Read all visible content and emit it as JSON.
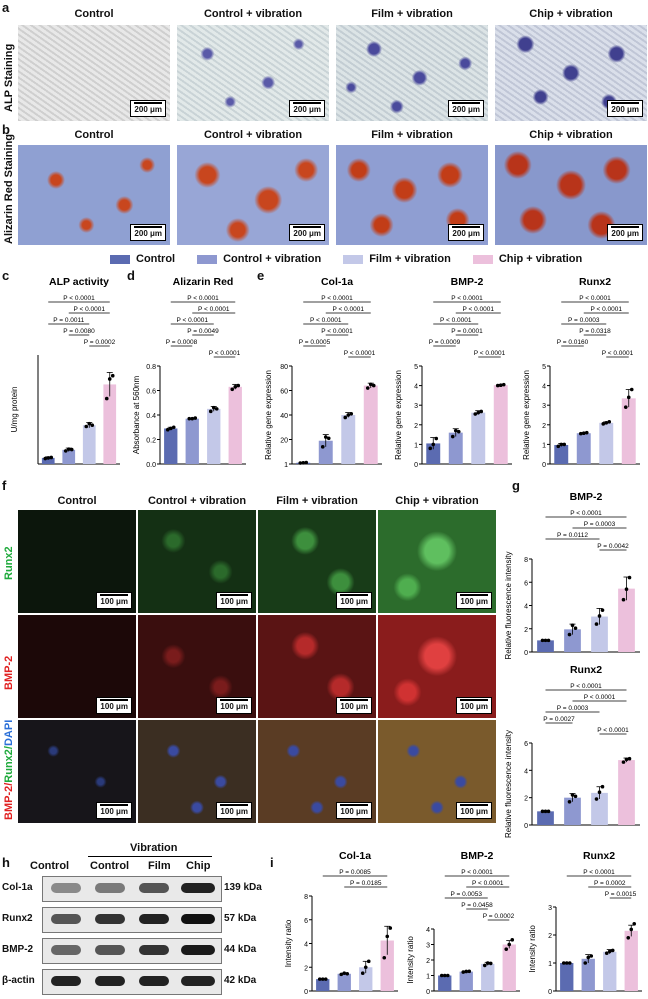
{
  "panel_letters": {
    "a": "a",
    "b": "b",
    "c": "c",
    "d": "d",
    "e": "e",
    "f": "f",
    "g": "g",
    "h": "h",
    "i": "i"
  },
  "groups": [
    "Control",
    "Control + vibration",
    "Film + vibration",
    "Chip + vibration"
  ],
  "colors": {
    "g1": "#5b6bb1",
    "g2": "#8e98d0",
    "g3": "#c3c8e8",
    "g4": "#ecc0dc"
  },
  "row_labels": {
    "alp": "ALP Staining",
    "alizarin": "Alizarin Red Staining",
    "runx2": "Runx2",
    "bmp2": "BMP-2",
    "merge_bmp": "BMP-2/",
    "merge_runx": "Runx2/",
    "merge_dapi": "DAPI"
  },
  "scale_bars": {
    "um200": "200 μm",
    "um100": "100 μm"
  },
  "western": {
    "header_control": "Control",
    "header_vibration": "Vibration",
    "lanes": [
      "Control",
      "Control",
      "Film",
      "Chip"
    ],
    "proteins": [
      "Col-1a",
      "Runx2",
      "BMP-2",
      "β-actin"
    ],
    "kda": [
      "139 kDa",
      "57 kDa",
      "44 kDa",
      "42 kDa"
    ]
  },
  "chart_data": [
    {
      "id": "c",
      "type": "bar",
      "title": "ALP activity",
      "ylabel": "U/mg protein",
      "ylim": [
        0,
        5
      ],
      "yticks": [],
      "categories": [
        "Control",
        "Control + vibration",
        "Film + vibration",
        "Chip + vibration"
      ],
      "values": [
        0.28,
        0.65,
        1.78,
        3.65
      ],
      "errors": [
        0.05,
        0.08,
        0.12,
        0.55
      ],
      "points": [
        [
          0.25,
          0.28,
          0.3
        ],
        [
          0.6,
          0.68,
          0.66
        ],
        [
          1.72,
          1.85,
          1.78
        ],
        [
          3.0,
          3.9,
          4.05
        ]
      ],
      "annotations": [
        {
          "text": "P < 0.0001",
          "a": 0,
          "b": 3
        },
        {
          "text": "P < 0.0001",
          "a": 1,
          "b": 3
        },
        {
          "text": "P = 0.0011",
          "a": 0,
          "b": 2
        },
        {
          "text": "P = 0.0080",
          "a": 1,
          "b": 2
        },
        {
          "text": "P = 0.0002",
          "a": 2,
          "b": 3
        }
      ]
    },
    {
      "id": "d",
      "type": "bar",
      "title": "Alizarin Red",
      "ylabel": "Absorbance at 560nm",
      "ylim": [
        0,
        0.8
      ],
      "yticks": [
        "0.0",
        "0.2",
        "0.4",
        "0.6",
        "0.8"
      ],
      "categories": [
        "Control",
        "Control + vibration",
        "Film + vibration",
        "Chip + vibration"
      ],
      "values": [
        0.29,
        0.37,
        0.45,
        0.63
      ],
      "errors": [
        0.01,
        0.005,
        0.02,
        0.02
      ],
      "points": [
        [
          0.28,
          0.29,
          0.3
        ],
        [
          0.37,
          0.37,
          0.375
        ],
        [
          0.43,
          0.46,
          0.45
        ],
        [
          0.61,
          0.63,
          0.64
        ]
      ],
      "annotations": [
        {
          "text": "P < 0.0001",
          "a": 0,
          "b": 3
        },
        {
          "text": "P < 0.0001",
          "a": 1,
          "b": 3
        },
        {
          "text": "P < 0.0001",
          "a": 0,
          "b": 2
        },
        {
          "text": "P = 0.0049",
          "a": 1,
          "b": 2
        },
        {
          "text": "P = 0.0008",
          "a": 0,
          "b": 1
        },
        {
          "text": "P < 0.0001",
          "a": 2,
          "b": 3
        }
      ]
    },
    {
      "id": "e1",
      "type": "bar",
      "title": "Col-1a",
      "ylabel": "Relative gene expression",
      "ylim": [
        0,
        80
      ],
      "yticks": [
        "1",
        "20",
        "40",
        "60",
        "80"
      ],
      "categories": [
        "Control",
        "Control + vibration",
        "Film + vibration",
        "Chip + vibration"
      ],
      "values": [
        1,
        19,
        40,
        64
      ],
      "errors": [
        0.3,
        5,
        2,
        2
      ],
      "points": [
        [
          0.8,
          1,
          1.2
        ],
        [
          14,
          22,
          21
        ],
        [
          38,
          40,
          41
        ],
        [
          62,
          65,
          64
        ]
      ],
      "annotations": [
        {
          "text": "P < 0.0001",
          "a": 0,
          "b": 3
        },
        {
          "text": "P < 0.0001",
          "a": 1,
          "b": 3
        },
        {
          "text": "P < 0.0001",
          "a": 0,
          "b": 2
        },
        {
          "text": "P < 0.0001",
          "a": 1,
          "b": 2
        },
        {
          "text": "P = 0.0005",
          "a": 0,
          "b": 1
        },
        {
          "text": "P < 0.0001",
          "a": 2,
          "b": 3
        }
      ]
    },
    {
      "id": "e2",
      "type": "bar",
      "title": "BMP-2",
      "ylabel": "Relative gene expression",
      "ylim": [
        0,
        5
      ],
      "yticks": [
        "0",
        "1",
        "2",
        "3",
        "4",
        "5"
      ],
      "categories": [
        "Control",
        "Control + vibration",
        "Film + vibration",
        "Chip + vibration"
      ],
      "values": [
        1.05,
        1.6,
        2.62,
        4.02
      ],
      "errors": [
        0.3,
        0.2,
        0.1,
        0.04
      ],
      "points": [
        [
          0.8,
          1.0,
          1.3
        ],
        [
          1.4,
          1.7,
          1.65
        ],
        [
          2.55,
          2.62,
          2.68
        ],
        [
          4.0,
          4.02,
          4.05
        ]
      ],
      "annotations": [
        {
          "text": "P < 0.0001",
          "a": 0,
          "b": 3
        },
        {
          "text": "P < 0.0001",
          "a": 1,
          "b": 3
        },
        {
          "text": "P < 0.0001",
          "a": 0,
          "b": 2
        },
        {
          "text": "P = 0.0001",
          "a": 1,
          "b": 2
        },
        {
          "text": "P = 0.0009",
          "a": 0,
          "b": 1
        },
        {
          "text": "P < 0.0001",
          "a": 2,
          "b": 3
        }
      ]
    },
    {
      "id": "e3",
      "type": "bar",
      "title": "Runx2",
      "ylabel": "Relative gene expression",
      "ylim": [
        0,
        5
      ],
      "yticks": [
        "0",
        "1",
        "2",
        "3",
        "4",
        "5"
      ],
      "categories": [
        "Control",
        "Control + vibration",
        "Film + vibration",
        "Chip + vibration"
      ],
      "values": [
        0.97,
        1.57,
        2.1,
        3.35
      ],
      "errors": [
        0.08,
        0.03,
        0.05,
        0.45
      ],
      "points": [
        [
          0.9,
          1.0,
          1.0
        ],
        [
          1.55,
          1.57,
          1.6
        ],
        [
          2.05,
          2.1,
          2.15
        ],
        [
          2.9,
          3.4,
          3.8
        ]
      ],
      "annotations": [
        {
          "text": "P < 0.0001",
          "a": 0,
          "b": 3
        },
        {
          "text": "P < 0.0001",
          "a": 1,
          "b": 3
        },
        {
          "text": "P = 0.0003",
          "a": 0,
          "b": 2
        },
        {
          "text": "P = 0.0318",
          "a": 1,
          "b": 2
        },
        {
          "text": "P = 0.0160",
          "a": 0,
          "b": 1
        },
        {
          "text": "P < 0.0001",
          "a": 2,
          "b": 3
        }
      ]
    },
    {
      "id": "g1",
      "type": "bar",
      "title": "BMP-2",
      "ylabel": "Relative fluorescence intensity",
      "ylim": [
        0,
        8
      ],
      "yticks": [
        "0",
        "2",
        "4",
        "6",
        "8"
      ],
      "categories": [
        "Control",
        "Control + vibration",
        "Film + vibration",
        "Chip + vibration"
      ],
      "values": [
        1.0,
        1.95,
        3.05,
        5.45
      ],
      "errors": [
        0.02,
        0.45,
        0.7,
        1.0
      ],
      "points": [
        [
          1.0,
          1.0,
          1.0
        ],
        [
          1.5,
          2.3,
          2.05
        ],
        [
          2.4,
          3.1,
          3.6
        ],
        [
          4.5,
          5.4,
          6.4
        ]
      ],
      "annotations": [
        {
          "text": "P < 0.0001",
          "a": 0,
          "b": 3
        },
        {
          "text": "P = 0.0003",
          "a": 1,
          "b": 3
        },
        {
          "text": "P = 0.0112",
          "a": 0,
          "b": 2
        },
        {
          "text": "P = 0.0042",
          "a": 2,
          "b": 3
        }
      ]
    },
    {
      "id": "g2",
      "type": "bar",
      "title": "Runx2",
      "ylabel": "Relative fluorescence intensity",
      "ylim": [
        0,
        6
      ],
      "yticks": [
        "0",
        "2",
        "4",
        "6"
      ],
      "categories": [
        "Control",
        "Control + vibration",
        "Film + vibration",
        "Chip + vibration"
      ],
      "values": [
        1.0,
        2.0,
        2.35,
        4.75
      ],
      "errors": [
        0.02,
        0.3,
        0.45,
        0.15
      ],
      "points": [
        [
          1.0,
          1.0,
          1.0
        ],
        [
          1.7,
          2.2,
          2.1
        ],
        [
          1.9,
          2.4,
          2.8
        ],
        [
          4.6,
          4.8,
          4.85
        ]
      ],
      "annotations": [
        {
          "text": "P < 0.0001",
          "a": 0,
          "b": 3
        },
        {
          "text": "P < 0.0001",
          "a": 1,
          "b": 3
        },
        {
          "text": "P = 0.0003",
          "a": 0,
          "b": 2
        },
        {
          "text": "P = 0.0027",
          "a": 0,
          "b": 1
        },
        {
          "text": "P < 0.0001",
          "a": 2,
          "b": 3
        }
      ]
    },
    {
      "id": "i1",
      "type": "bar",
      "title": "Col-1a",
      "ylabel": "Intensity ratio",
      "ylim": [
        0,
        8
      ],
      "yticks": [
        "0",
        "2",
        "4",
        "6",
        "8"
      ],
      "categories": [
        "Control",
        "Control + vibration",
        "Film + vibration",
        "Chip + vibration"
      ],
      "values": [
        1.0,
        1.45,
        2.0,
        4.25
      ],
      "errors": [
        0.02,
        0.05,
        0.5,
        1.2
      ],
      "points": [
        [
          1.0,
          1.0,
          1.0
        ],
        [
          1.4,
          1.5,
          1.45
        ],
        [
          1.5,
          2.0,
          2.5
        ],
        [
          2.8,
          4.6,
          5.3
        ]
      ],
      "annotations": [
        {
          "text": "P = 0.0085",
          "a": 0,
          "b": 3
        },
        {
          "text": "P = 0.0185",
          "a": 1,
          "b": 3
        }
      ]
    },
    {
      "id": "i2",
      "type": "bar",
      "title": "BMP-2",
      "ylabel": "Intensity ratio",
      "ylim": [
        0,
        4
      ],
      "yticks": [
        "0",
        "1",
        "2",
        "3",
        "4"
      ],
      "categories": [
        "Control",
        "Control + vibration",
        "Film + vibration",
        "Chip + vibration"
      ],
      "values": [
        1.0,
        1.25,
        1.75,
        3.0
      ],
      "errors": [
        0.01,
        0.03,
        0.1,
        0.25
      ],
      "points": [
        [
          1.0,
          1.0,
          1.0
        ],
        [
          1.22,
          1.26,
          1.27
        ],
        [
          1.65,
          1.8,
          1.78
        ],
        [
          2.7,
          3.0,
          3.3
        ]
      ],
      "annotations": [
        {
          "text": "P < 0.0001",
          "a": 0,
          "b": 3
        },
        {
          "text": "P < 0.0001",
          "a": 1,
          "b": 3
        },
        {
          "text": "P = 0.0053",
          "a": 0,
          "b": 2
        },
        {
          "text": "P = 0.0458",
          "a": 1,
          "b": 2
        },
        {
          "text": "P = 0.0002",
          "a": 2,
          "b": 3
        }
      ]
    },
    {
      "id": "i3",
      "type": "bar",
      "title": "Runx2",
      "ylabel": "Intensity ratio",
      "ylim": [
        0,
        3
      ],
      "yticks": [
        "0",
        "1",
        "2",
        "3"
      ],
      "categories": [
        "Control",
        "Control + vibration",
        "Film + vibration",
        "Chip + vibration"
      ],
      "values": [
        1.0,
        1.15,
        1.4,
        2.15
      ],
      "errors": [
        0.01,
        0.15,
        0.08,
        0.2
      ],
      "points": [
        [
          1.0,
          1.0,
          1.0
        ],
        [
          1.0,
          1.2,
          1.25
        ],
        [
          1.35,
          1.42,
          1.45
        ],
        [
          1.9,
          2.2,
          2.4
        ]
      ],
      "annotations": [
        {
          "text": "P < 0.0001",
          "a": 0,
          "b": 3
        },
        {
          "text": "P = 0.0002",
          "a": 1,
          "b": 3
        },
        {
          "text": "P = 0.0015",
          "a": 2,
          "b": 3
        }
      ]
    }
  ]
}
